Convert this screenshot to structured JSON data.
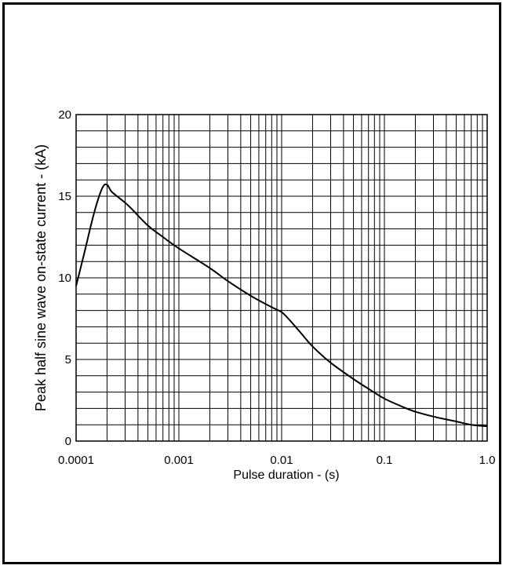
{
  "chart_data": {
    "type": "line",
    "title": "",
    "xlabel": "Pulse duration - (s)",
    "ylabel": "Peak half sine wave on-state current - (kA)",
    "xscale": "log",
    "xlim": [
      0.0001,
      1.0
    ],
    "ylim": [
      0,
      20
    ],
    "xticks": [
      0.0001,
      0.001,
      0.01,
      0.1,
      1.0
    ],
    "xtick_labels": [
      "0.0001",
      "0.001",
      "0.01",
      "0.1",
      "1.0"
    ],
    "yticks": [
      0,
      5,
      10,
      15,
      20
    ],
    "ytick_labels": [
      "0",
      "5",
      "10",
      "15",
      "20"
    ],
    "grid": true,
    "legend": "none",
    "series": [
      {
        "x": [
          0.0001,
          0.00012,
          0.00015,
          0.00018,
          0.0002,
          0.00022,
          0.00025,
          0.0003,
          0.00035,
          0.0005,
          0.0007,
          0.001,
          0.002,
          0.003,
          0.005,
          0.008,
          0.01,
          0.012,
          0.015,
          0.02,
          0.03,
          0.05,
          0.07,
          0.1,
          0.15,
          0.2,
          0.3,
          0.5,
          0.7,
          1.0
        ],
        "y": [
          9.5,
          11.5,
          14.0,
          15.5,
          15.7,
          15.3,
          15.0,
          14.6,
          14.2,
          13.2,
          12.5,
          11.8,
          10.6,
          9.8,
          8.9,
          8.2,
          7.9,
          7.4,
          6.7,
          5.8,
          4.8,
          3.8,
          3.2,
          2.6,
          2.1,
          1.8,
          1.5,
          1.2,
          1.0,
          0.9
        ]
      }
    ]
  }
}
